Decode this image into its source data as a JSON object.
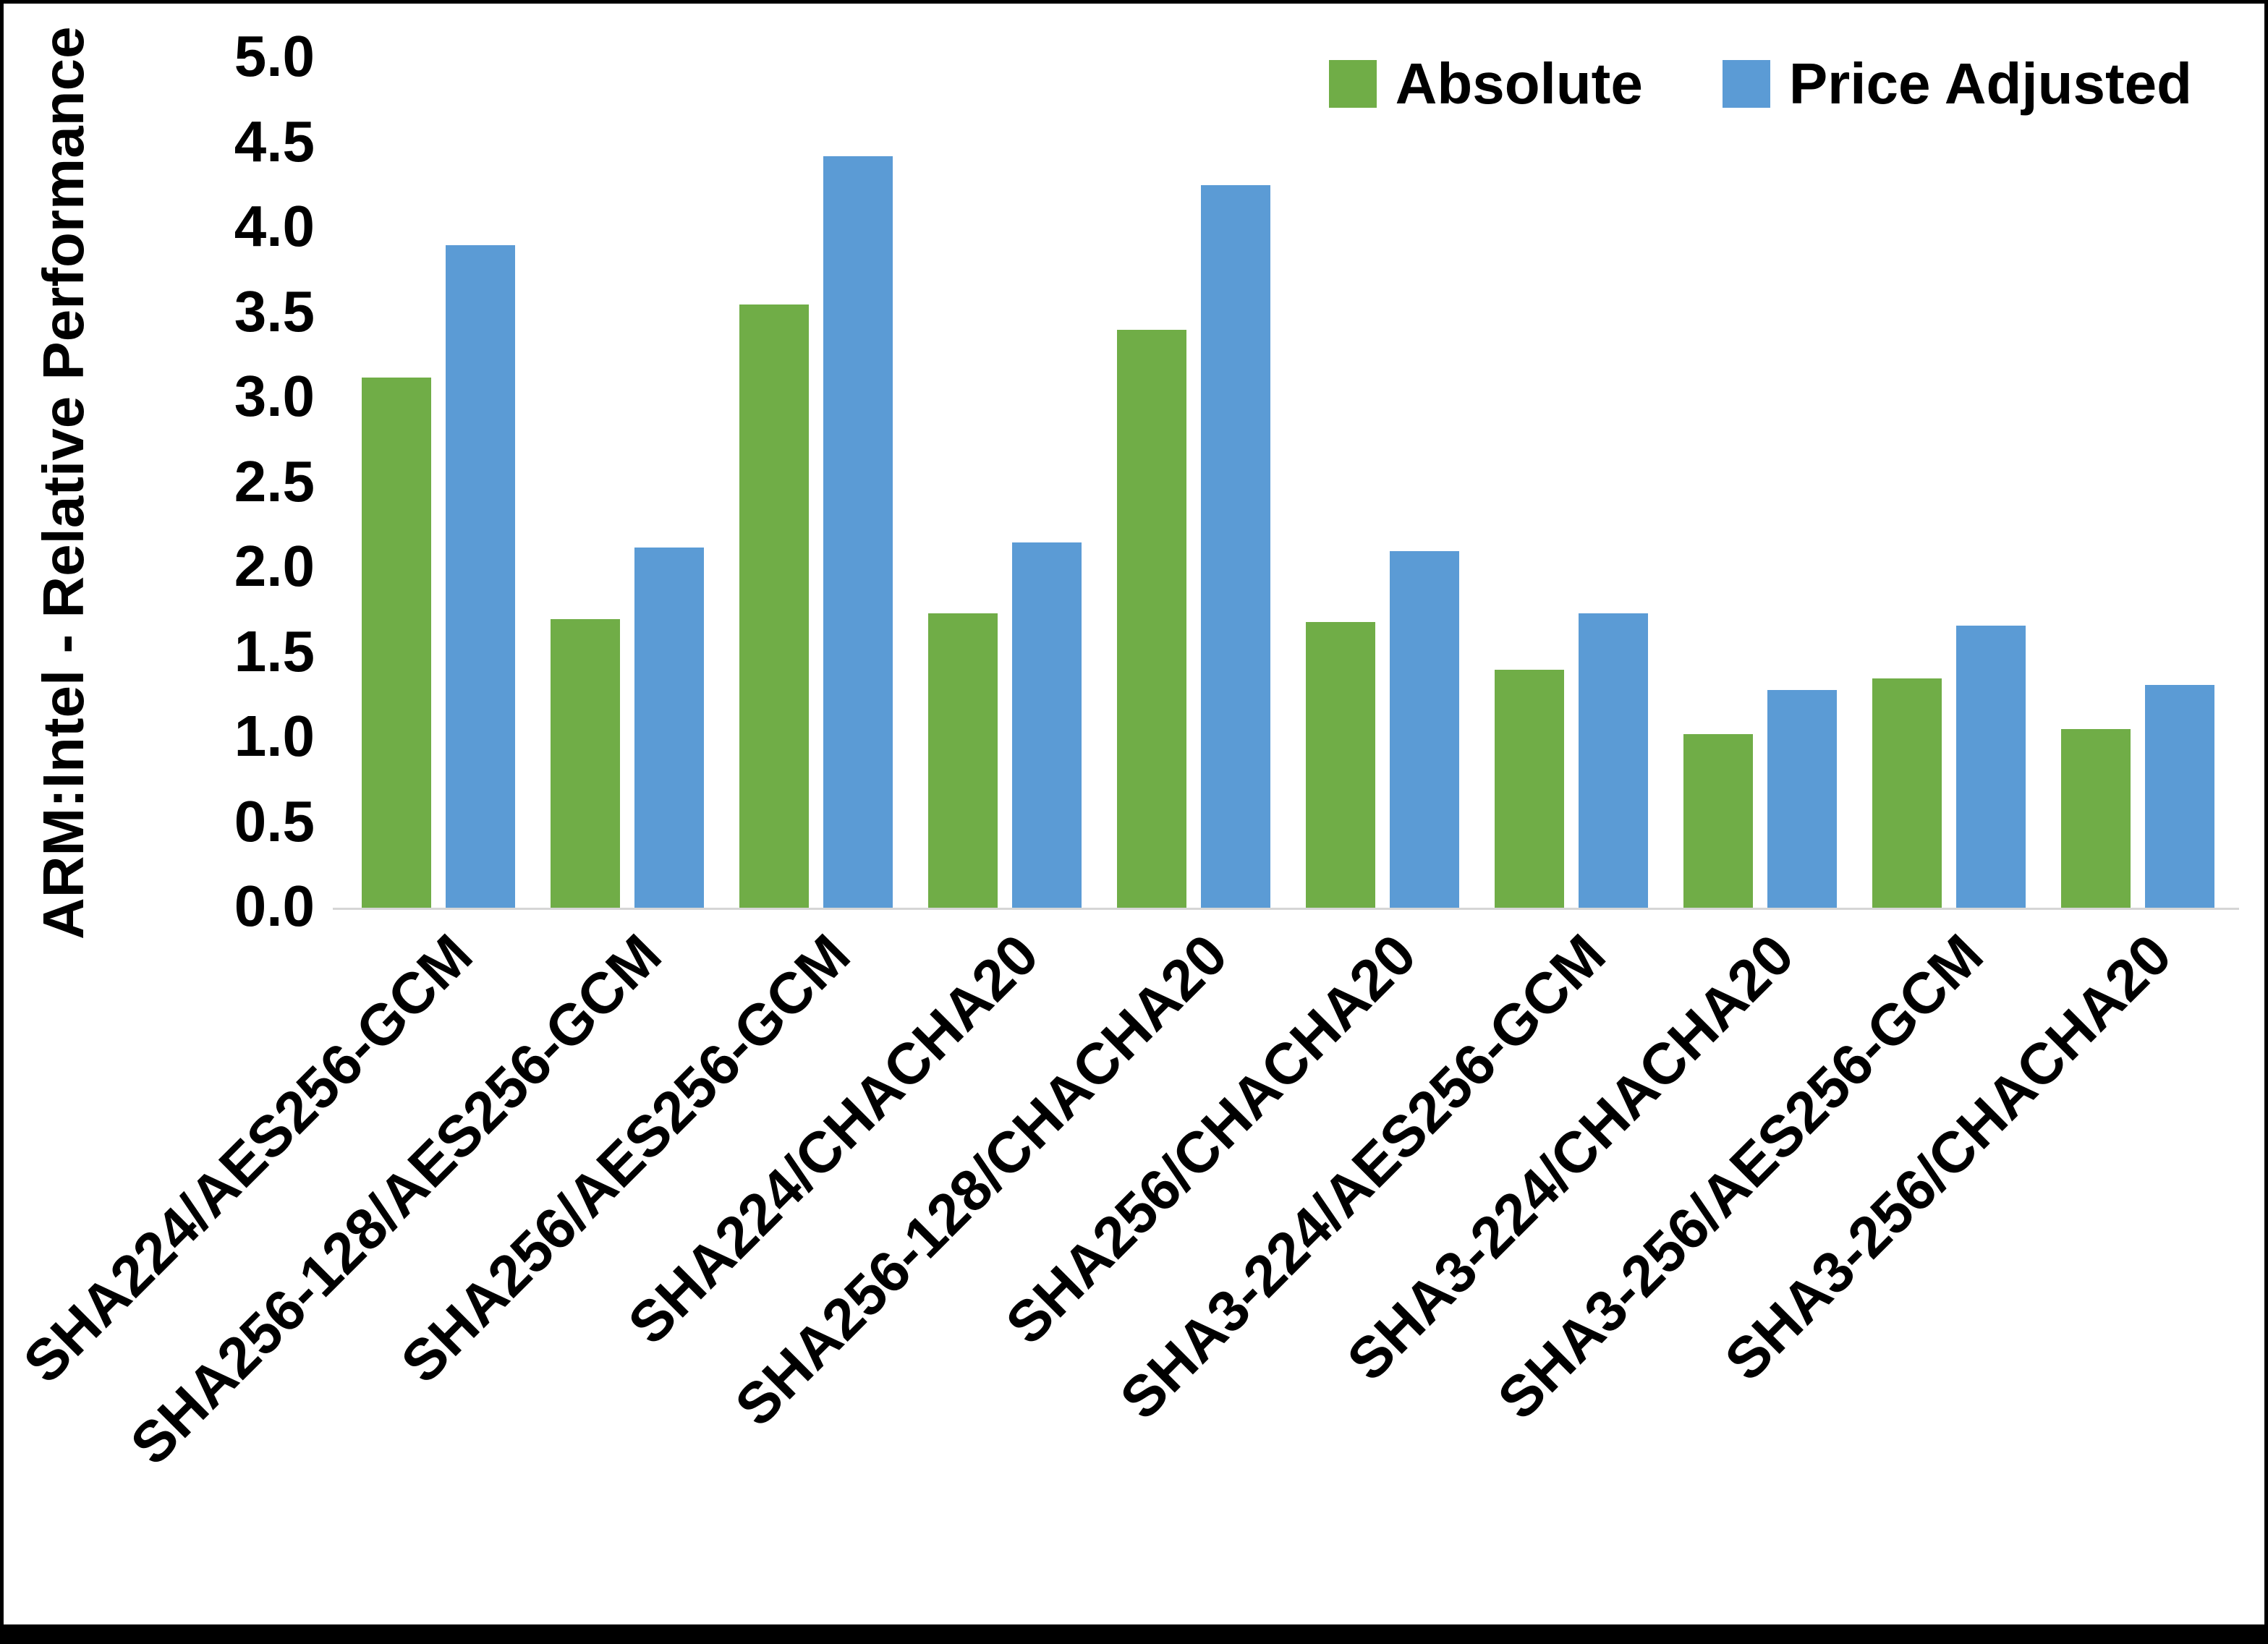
{
  "chart_data": {
    "type": "bar",
    "title": "",
    "xlabel": "",
    "ylabel": "ARM:Intel - Relative Performance",
    "ylim": [
      0,
      5
    ],
    "ytick_step": 0.5,
    "grid": false,
    "legend_position": "top-right",
    "categories": [
      "SHA224/AES256-GCM",
      "SHA256-128/AES256-GCM",
      "SHA256/AES256-GCM",
      "SHA224/CHACHA20",
      "SHA256-128/CHACHA20",
      "SHA256/CHACHA20",
      "SHA3-224/AES256-GCM",
      "SHA3-224/CHACHA20",
      "SHA3-256/AES256-GCM",
      "SHA3-256/CHACHA20"
    ],
    "series": [
      {
        "name": "Absolute",
        "color": "#70AD47",
        "values": [
          3.12,
          1.7,
          3.55,
          1.73,
          3.4,
          1.68,
          1.4,
          1.02,
          1.35,
          1.05
        ]
      },
      {
        "name": "Price Adjusted",
        "color": "#5B9BD5",
        "values": [
          3.9,
          2.12,
          4.42,
          2.15,
          4.25,
          2.1,
          1.73,
          1.28,
          1.66,
          1.31
        ]
      }
    ]
  }
}
